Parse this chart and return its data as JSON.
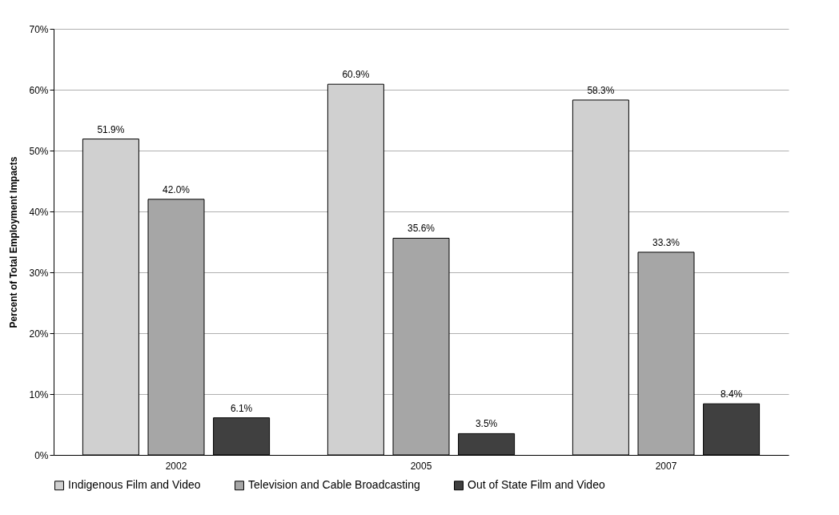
{
  "chart_data": {
    "type": "bar",
    "ylabel": "Percent of Total Employment Impacts",
    "categories": [
      "2002",
      "2005",
      "2007"
    ],
    "series": [
      {
        "name": "Indigenous Film and Video",
        "color": "#d0d0d0",
        "values": [
          51.9,
          60.9,
          58.3
        ],
        "value_labels": [
          "51.9%",
          "60.9%",
          "58.3%"
        ]
      },
      {
        "name": "Television and Cable Broadcasting",
        "color": "#a6a6a6",
        "values": [
          42.0,
          35.6,
          33.3
        ],
        "value_labels": [
          "42.0%",
          "35.6%",
          "33.3%"
        ]
      },
      {
        "name": "Out of State Film and Video",
        "color": "#404040",
        "values": [
          6.1,
          3.5,
          8.4
        ],
        "value_labels": [
          "6.1%",
          "3.5%",
          "8.4%"
        ]
      }
    ],
    "ylim": [
      0,
      70
    ],
    "yticks": [
      {
        "value": 0,
        "label": "0%"
      },
      {
        "value": 10,
        "label": "10%"
      },
      {
        "value": 20,
        "label": "20%"
      },
      {
        "value": 30,
        "label": "30%"
      },
      {
        "value": 40,
        "label": "40%"
      },
      {
        "value": 50,
        "label": "50%"
      },
      {
        "value": 60,
        "label": "60%"
      },
      {
        "value": 70,
        "label": "70%"
      }
    ],
    "grid": "y",
    "legend": "bottom"
  }
}
